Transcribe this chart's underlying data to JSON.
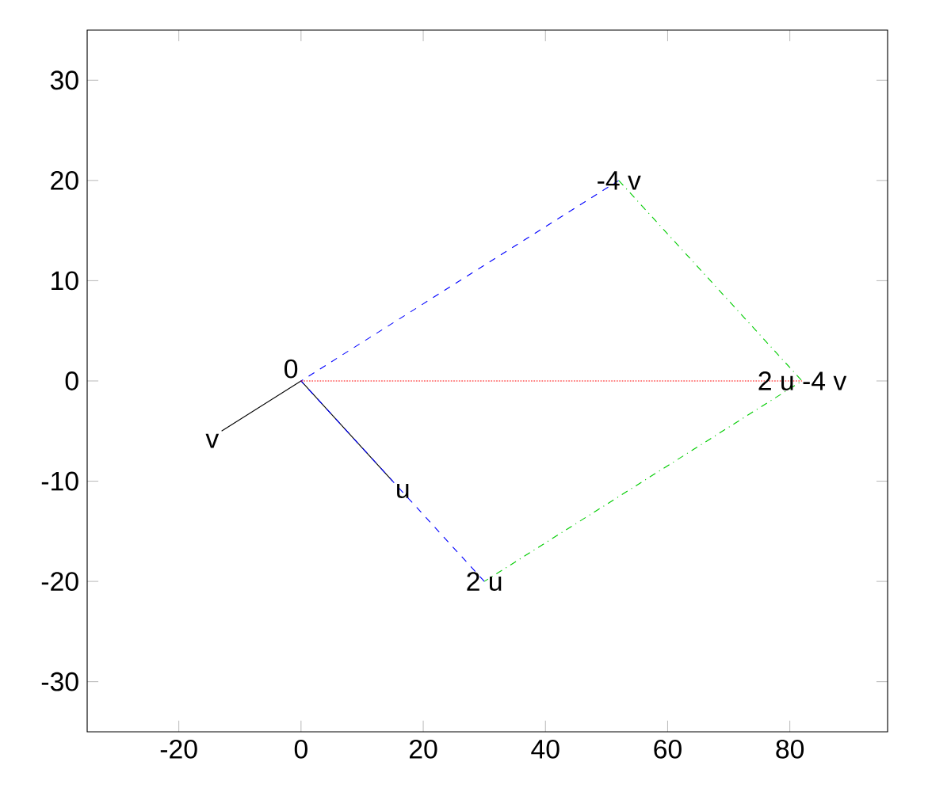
{
  "chart_data": {
    "type": "line",
    "series": [
      {
        "color": "#000000",
        "line_style": "solid",
        "x": [
          -13,
          0,
          15
        ],
        "values": [
          -5,
          0,
          -10
        ]
      },
      {
        "color": "#0000ff",
        "line_style": "dashed",
        "x": [
          30,
          0,
          52
        ],
        "values": [
          -20,
          0,
          20
        ]
      },
      {
        "color": "#00cc00",
        "line_style": "dashdot",
        "x": [
          52,
          82,
          30
        ],
        "values": [
          20,
          0,
          -20
        ]
      },
      {
        "color": "#ff0000",
        "line_style": "dotted",
        "x": [
          0,
          82
        ],
        "values": [
          0,
          0
        ]
      }
    ],
    "xlim": [
      -35,
      96
    ],
    "ylim": [
      -35,
      35
    ],
    "xticks": [
      -20,
      0,
      20,
      40,
      60,
      80
    ],
    "yticks": [
      -30,
      -20,
      -10,
      0,
      10,
      20,
      30
    ],
    "grid": false,
    "marker": "none",
    "annotations": [
      {
        "text": "0",
        "x": 0,
        "y": 0
      },
      {
        "text": "u",
        "x": 15,
        "y": -10
      },
      {
        "text": "v",
        "x": -13,
        "y": -5
      },
      {
        "text": "2 u",
        "x": 30,
        "y": -20
      },
      {
        "text": "-4 v",
        "x": 52,
        "y": 20
      },
      {
        "text": "2 u -4 v",
        "x": 82,
        "y": 0
      }
    ]
  }
}
